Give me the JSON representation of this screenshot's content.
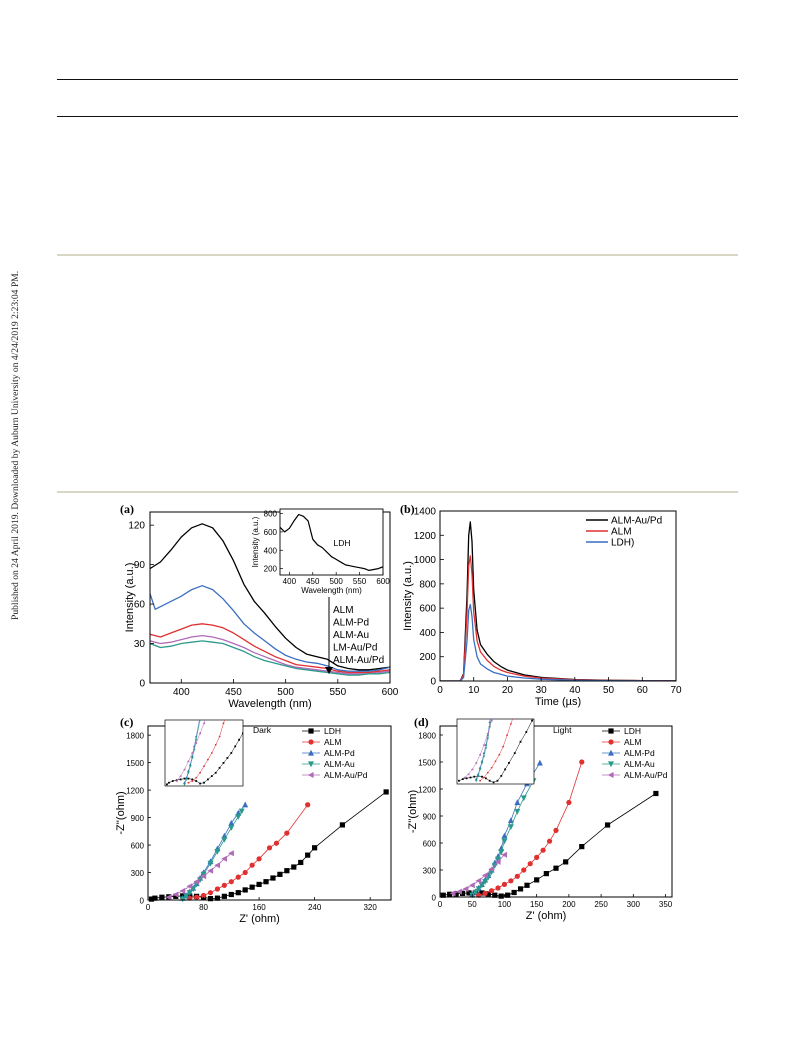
{
  "sidebar_text": "Published on 24 April 2019. Downloaded by Auburn University on 4/24/2019 2:23:04 PM.",
  "chart_data": [
    {
      "panel": "(a)",
      "type": "line",
      "xlabel": "Wavelength (nm)",
      "ylabel": "Intensity (a.u.)",
      "xlim": [
        370,
        600
      ],
      "ylim": [
        0,
        130
      ],
      "xticks": [
        400,
        450,
        500,
        550,
        600
      ],
      "yticks": [
        0,
        30,
        60,
        90,
        120
      ],
      "legend_arrow_labels": [
        "ALM",
        "ALM-Pd",
        "ALM-Au",
        "LM-Au/Pd",
        "ALM-Au/Pd"
      ],
      "series": [
        {
          "color": "#000000",
          "x": [
            370,
            380,
            390,
            400,
            410,
            420,
            430,
            440,
            450,
            460,
            470,
            480,
            490,
            500,
            510,
            520,
            530,
            540,
            550,
            560,
            570,
            580,
            590,
            600
          ],
          "y": [
            87,
            92,
            101,
            111,
            118,
            121,
            118,
            108,
            93,
            75,
            62,
            53,
            43,
            34,
            27,
            22,
            20,
            18,
            13,
            11,
            10,
            10,
            11,
            12
          ]
        },
        {
          "color": "#3a6fc0",
          "x": [
            370,
            375,
            380,
            390,
            400,
            410,
            420,
            430,
            440,
            450,
            460,
            470,
            480,
            490,
            500,
            510,
            520,
            530,
            540,
            550,
            560,
            570,
            580,
            590,
            600
          ],
          "y": [
            68,
            56,
            58,
            62,
            66,
            71,
            74,
            71,
            64,
            55,
            45,
            38,
            32,
            26,
            21,
            18,
            16,
            15,
            13,
            10,
            9,
            9,
            9,
            10,
            12
          ]
        },
        {
          "color": "#e03030",
          "x": [
            370,
            380,
            390,
            400,
            410,
            420,
            430,
            440,
            450,
            460,
            470,
            480,
            490,
            500,
            510,
            520,
            530,
            540,
            550,
            560,
            570,
            580,
            590,
            600
          ],
          "y": [
            37,
            35,
            38,
            41,
            44,
            45,
            44,
            42,
            38,
            33,
            28,
            24,
            20,
            17,
            14,
            13,
            12,
            11,
            9,
            8,
            8,
            8,
            9,
            10
          ]
        },
        {
          "color": "#b06ab8",
          "x": [
            370,
            380,
            390,
            400,
            410,
            420,
            430,
            440,
            450,
            460,
            470,
            480,
            490,
            500,
            510,
            520,
            530,
            540,
            550,
            560,
            570,
            580,
            590,
            600
          ],
          "y": [
            32,
            30,
            31,
            33,
            35,
            36,
            35,
            33,
            30,
            27,
            23,
            20,
            17,
            14,
            12,
            11,
            10,
            9,
            8,
            7,
            7,
            7,
            8,
            9
          ]
        },
        {
          "color": "#2a9a8a",
          "x": [
            370,
            380,
            390,
            400,
            410,
            420,
            430,
            440,
            450,
            460,
            470,
            480,
            490,
            500,
            510,
            520,
            530,
            540,
            550,
            560,
            570,
            580,
            590,
            600
          ],
          "y": [
            30,
            27,
            28,
            30,
            31,
            32,
            31,
            30,
            27,
            24,
            20,
            17,
            15,
            13,
            11,
            10,
            9,
            8,
            7,
            6,
            6,
            7,
            7,
            8
          ]
        }
      ],
      "inset": {
        "type": "line",
        "label": "LDH",
        "xlabel": "Wavelength (nm)",
        "ylabel": "Intensity (a.u.)",
        "xlim": [
          380,
          600
        ],
        "ylim": [
          130,
          850
        ],
        "xticks": [
          400,
          450,
          500,
          550,
          600
        ],
        "yticks": [
          200,
          400,
          600,
          800
        ],
        "x": [
          380,
          390,
          400,
          410,
          420,
          430,
          440,
          450,
          460,
          470,
          480,
          490,
          500,
          510,
          520,
          530,
          540,
          550,
          560,
          570,
          580,
          590,
          600
        ],
        "y": [
          650,
          600,
          640,
          720,
          790,
          770,
          720,
          520,
          460,
          430,
          380,
          330,
          300,
          270,
          240,
          230,
          220,
          210,
          200,
          180,
          190,
          200,
          220
        ]
      }
    },
    {
      "panel": "(b)",
      "type": "line",
      "xlabel": "Time (µs)",
      "ylabel": "Intensity (a.u.)",
      "xlim": [
        0,
        70
      ],
      "ylim": [
        0,
        1400
      ],
      "xticks": [
        0,
        10,
        20,
        30,
        40,
        50,
        60,
        70
      ],
      "yticks": [
        0,
        200,
        400,
        600,
        800,
        1000,
        1200,
        1400
      ],
      "legend": [
        "ALM-Au/Pd",
        "ALM",
        "LDH)"
      ],
      "series": [
        {
          "name": "ALM-Au/Pd",
          "color": "#000000",
          "x": [
            0,
            6,
            7,
            8,
            8.5,
            9,
            9.5,
            10,
            11,
            12,
            14,
            16,
            18,
            20,
            25,
            30,
            40,
            50,
            60,
            70
          ],
          "y": [
            0,
            0,
            60,
            700,
            1200,
            1310,
            1150,
            750,
            420,
            300,
            220,
            160,
            120,
            90,
            50,
            30,
            12,
            6,
            3,
            2
          ]
        },
        {
          "name": "ALM",
          "color": "#e03030",
          "x": [
            0,
            6,
            7,
            8,
            8.5,
            9,
            9.5,
            10,
            11,
            12,
            14,
            16,
            18,
            20,
            25,
            30,
            40,
            50,
            60,
            70
          ],
          "y": [
            0,
            0,
            50,
            560,
            950,
            1030,
            880,
            570,
            330,
            240,
            170,
            120,
            90,
            70,
            40,
            25,
            10,
            5,
            3,
            2
          ]
        },
        {
          "name": "LDH)",
          "color": "#3a6fc0",
          "x": [
            0,
            6,
            7,
            8,
            8.5,
            9,
            9.5,
            10,
            11,
            12,
            14,
            16,
            18,
            20,
            25,
            30,
            40,
            50,
            60,
            70
          ],
          "y": [
            0,
            0,
            30,
            330,
            580,
            630,
            530,
            340,
            200,
            140,
            100,
            70,
            55,
            40,
            25,
            15,
            6,
            3,
            2,
            1
          ]
        }
      ]
    },
    {
      "panel": "(c)",
      "type": "scatter",
      "annotation": "Dark",
      "xlabel": "Z' (ohm)",
      "ylabel": "-Z''(ohm)",
      "xlim": [
        0,
        350
      ],
      "ylim": [
        0,
        1900
      ],
      "xticks": [
        0,
        80,
        160,
        240,
        320
      ],
      "yticks": [
        0,
        300,
        600,
        900,
        1200,
        1500,
        1800
      ],
      "legend": [
        "LDH",
        "ALM",
        "ALM-Pd",
        "ALM-Au",
        "ALM-Au/Pd"
      ],
      "series": [
        {
          "name": "LDH",
          "color": "#000000",
          "marker": "square",
          "x": [
            5,
            10,
            20,
            30,
            40,
            50,
            60,
            70,
            80,
            90,
            100,
            110,
            120,
            130,
            140,
            150,
            160,
            170,
            180,
            190,
            200,
            210,
            220,
            230,
            240,
            280,
            343
          ],
          "y": [
            10,
            20,
            30,
            35,
            40,
            45,
            45,
            40,
            30,
            15,
            20,
            40,
            60,
            80,
            110,
            140,
            170,
            200,
            240,
            280,
            320,
            360,
            410,
            490,
            570,
            820,
            1180
          ]
        },
        {
          "name": "ALM",
          "color": "#e03030",
          "marker": "circle",
          "x": [
            60,
            70,
            80,
            90,
            100,
            110,
            120,
            130,
            140,
            150,
            160,
            175,
            185,
            200,
            230
          ],
          "y": [
            20,
            30,
            50,
            80,
            120,
            160,
            200,
            250,
            300,
            380,
            450,
            570,
            620,
            730,
            1040
          ]
        },
        {
          "name": "ALM-Pd",
          "color": "#3a6fc0",
          "marker": "triangle-up",
          "x": [
            50,
            55,
            60,
            65,
            70,
            75,
            80,
            90,
            100,
            110,
            120,
            130,
            140
          ],
          "y": [
            20,
            50,
            90,
            130,
            180,
            240,
            300,
            420,
            560,
            700,
            840,
            950,
            1040
          ]
        },
        {
          "name": "ALM-Au",
          "color": "#2a9a8a",
          "marker": "triangle-down",
          "x": [
            50,
            55,
            60,
            65,
            70,
            75,
            80,
            90,
            100,
            110,
            120,
            130,
            135
          ],
          "y": [
            10,
            40,
            80,
            120,
            170,
            220,
            280,
            400,
            530,
            660,
            790,
            910,
            970
          ]
        },
        {
          "name": "ALM-Au/Pd",
          "color": "#b06ab8",
          "marker": "triangle-left",
          "x": [
            30,
            40,
            50,
            60,
            70,
            80,
            90,
            100,
            110,
            120
          ],
          "y": [
            30,
            60,
            100,
            150,
            200,
            260,
            320,
            380,
            450,
            510
          ]
        }
      ]
    },
    {
      "panel": "(d)",
      "type": "scatter",
      "annotation": "Light",
      "xlabel": "Z' (ohm)",
      "ylabel": "-Z''(ohm)",
      "xlim": [
        0,
        360
      ],
      "ylim": [
        0,
        1900
      ],
      "xticks": [
        0,
        50,
        100,
        150,
        200,
        250,
        300,
        350
      ],
      "yticks": [
        0,
        300,
        600,
        900,
        1200,
        1500,
        1800
      ],
      "legend": [
        "LDH",
        "ALM",
        "ALM-Pd",
        "ALM-Au",
        "ALM-Au/Pd"
      ],
      "series": [
        {
          "name": "LDH",
          "color": "#000000",
          "marker": "square",
          "x": [
            5,
            15,
            25,
            35,
            45,
            55,
            65,
            75,
            85,
            95,
            105,
            115,
            125,
            135,
            150,
            165,
            180,
            195,
            220,
            260,
            335
          ],
          "y": [
            20,
            30,
            35,
            40,
            45,
            50,
            45,
            35,
            20,
            10,
            20,
            50,
            90,
            130,
            190,
            260,
            320,
            390,
            560,
            800,
            1150
          ]
        },
        {
          "name": "ALM",
          "color": "#e03030",
          "marker": "circle",
          "x": [
            60,
            70,
            80,
            90,
            100,
            110,
            120,
            130,
            140,
            150,
            160,
            170,
            180,
            200,
            220
          ],
          "y": [
            20,
            40,
            70,
            100,
            140,
            180,
            230,
            300,
            370,
            440,
            520,
            620,
            740,
            1050,
            1500
          ]
        },
        {
          "name": "ALM-Pd",
          "color": "#3a6fc0",
          "marker": "triangle-up",
          "x": [
            50,
            55,
            60,
            65,
            70,
            75,
            80,
            85,
            90,
            95,
            100,
            110,
            120,
            135,
            155
          ],
          "y": [
            30,
            60,
            100,
            140,
            190,
            240,
            300,
            380,
            450,
            540,
            680,
            850,
            1050,
            1260,
            1490
          ]
        },
        {
          "name": "ALM-Au",
          "color": "#2a9a8a",
          "marker": "triangle-down",
          "x": [
            50,
            55,
            60,
            65,
            70,
            75,
            80,
            85,
            90,
            95,
            100,
            110,
            120,
            130,
            145
          ],
          "y": [
            20,
            50,
            90,
            130,
            170,
            220,
            280,
            350,
            420,
            500,
            620,
            780,
            950,
            1100,
            1290
          ]
        },
        {
          "name": "ALM-Au/Pd",
          "color": "#b06ab8",
          "marker": "triangle-left",
          "x": [
            20,
            30,
            40,
            50,
            60,
            70,
            80,
            90,
            100
          ],
          "y": [
            40,
            60,
            90,
            130,
            180,
            240,
            310,
            390,
            470
          ]
        }
      ]
    }
  ]
}
